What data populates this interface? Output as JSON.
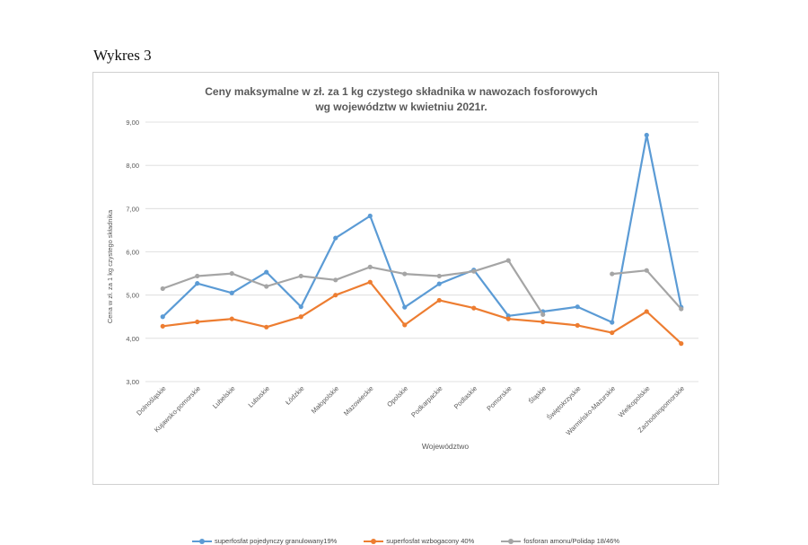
{
  "page_heading": "Wykres 3",
  "chart_data": {
    "type": "line",
    "title": "Ceny maksymalne w zł. za 1 kg czystego składnika w nawozach fosforowych",
    "subtitle": "wg województw w kwietniu 2021r.",
    "xlabel": "Województwo",
    "ylabel": "Cena w zł. za 1 kg czystego składnika",
    "ylim": [
      3.0,
      9.0
    ],
    "y_ticks": [
      "9,00",
      "8,00",
      "7,00",
      "6,00",
      "5,00",
      "4,00",
      "3,00"
    ],
    "grid": true,
    "legend_position": "bottom",
    "categories": [
      "Dolnośląskie",
      "Kujawsko-pomorskie",
      "Lubelskie",
      "Lubuskie",
      "Łódzkie",
      "Małopolskie",
      "Mazowieckie",
      "Opolskie",
      "Podkarpackie",
      "Podlaskie",
      "Pomorskie",
      "Śląskie",
      "Świętokrzyskie",
      "Warmińsko-Mazurskie",
      "Wielkopolskie",
      "Zachodniopomorskie"
    ],
    "series": [
      {
        "name": "superfosfat pojedynczy granulowany19%",
        "color": "#5b9bd5",
        "values": [
          4.5,
          5.27,
          5.05,
          5.53,
          4.73,
          6.32,
          6.83,
          4.72,
          5.26,
          5.58,
          4.52,
          4.62,
          4.73,
          4.37,
          8.7,
          4.72
        ]
      },
      {
        "name": "superfosfat wzbogacony 40%",
        "color": "#ed7d31",
        "values": [
          4.28,
          4.38,
          4.45,
          4.26,
          4.5,
          5.0,
          5.3,
          4.31,
          4.88,
          4.7,
          4.45,
          4.38,
          4.3,
          4.13,
          4.62,
          3.88
        ]
      },
      {
        "name": "fosforan amonu/Polidap 18/46%",
        "color": "#a5a5a5",
        "values": [
          5.15,
          5.44,
          5.5,
          5.2,
          5.44,
          5.35,
          5.65,
          5.49,
          5.44,
          5.55,
          5.8,
          4.55,
          null,
          5.49,
          5.57,
          4.68
        ]
      }
    ]
  }
}
